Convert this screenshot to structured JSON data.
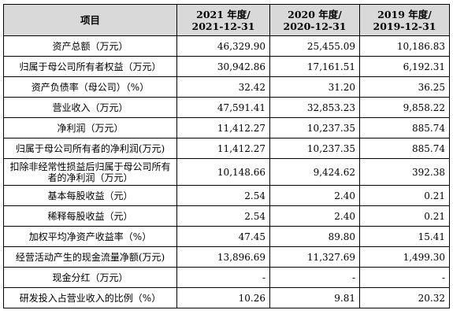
{
  "header": {
    "item_label": "项目",
    "years": [
      {
        "line1": "2021 年度/",
        "line2": "2021-12-31"
      },
      {
        "line1": "2020 年度/",
        "line2": "2020-12-31"
      },
      {
        "line1": "2019 年度/",
        "line2": "2019-12-31"
      }
    ]
  },
  "rows": [
    {
      "label": "资产总额（万元）",
      "values": [
        "46,329.90",
        "25,455.09",
        "10,186.83"
      ]
    },
    {
      "label": "归属于母公司所有者权益（万元）",
      "values": [
        "30,942.86",
        "17,161.51",
        "6,192.31"
      ]
    },
    {
      "label": "资产负债率（母公司）（%）",
      "values": [
        "32.42",
        "31.20",
        "36.25"
      ]
    },
    {
      "label": "营业收入（万元）",
      "values": [
        "47,591.41",
        "32,853.23",
        "9,858.22"
      ]
    },
    {
      "label": "净利润（万元）",
      "values": [
        "11,412.27",
        "10,237.35",
        "885.74"
      ]
    },
    {
      "label": "归属于母公司所有者的净利润(万元)",
      "values": [
        "11,412.27",
        "10,237.35",
        "885.74"
      ]
    },
    {
      "label": "扣除非经常性损益后归属于母公司所有者的净利润（万元）",
      "values": [
        "10,148.66",
        "9,424.62",
        "392.38"
      ]
    },
    {
      "label": "基本每股收益（元）",
      "values": [
        "2.54",
        "2.40",
        "0.21"
      ]
    },
    {
      "label": "稀释每股收益（元）",
      "values": [
        "2.54",
        "2.40",
        "0.21"
      ]
    },
    {
      "label": "加权平均净资产收益率（%）",
      "values": [
        "47.45",
        "89.80",
        "15.41"
      ]
    },
    {
      "label": "经营活动产生的现金流量净额(万元)",
      "values": [
        "13,896.69",
        "11,327.69",
        "1,499.30"
      ]
    },
    {
      "label": "现金分红（万元）",
      "values": [
        "-",
        "-",
        "-"
      ]
    },
    {
      "label": "研发投入占营业收入的比例（%）",
      "values": [
        "10.26",
        "9.81",
        "20.32"
      ]
    }
  ]
}
